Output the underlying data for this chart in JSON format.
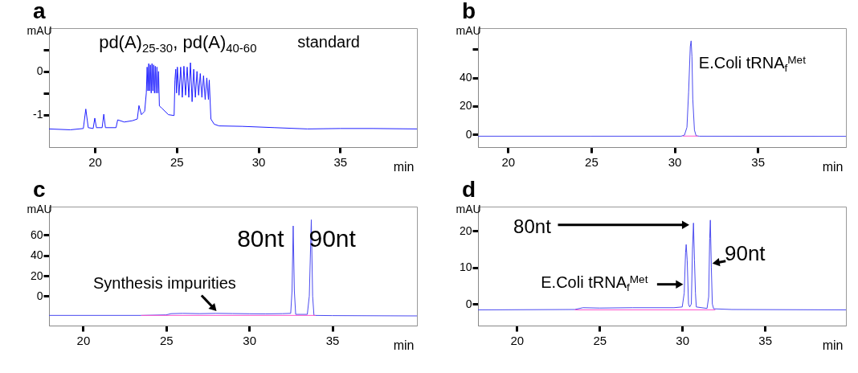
{
  "chart_data": [
    {
      "type": "line",
      "title": "a",
      "xlabel": "min",
      "ylabel": "mAU",
      "xlim": [
        17.2,
        39.7
      ],
      "ylim": [
        -1.75,
        1.0
      ],
      "xticks": [
        20,
        25,
        30,
        35
      ],
      "yticks": [
        {
          "value": 0.5,
          "label": null
        },
        0,
        {
          "value": -0.5,
          "label": null
        },
        -1
      ],
      "annotations": [
        "pd(A)$_{25-30}$, pd(A)$_{40-60}$",
        "standard"
      ],
      "series": [
        {
          "color": "#1f1fff",
          "x": [
            17.2,
            18.5,
            19.3,
            19.45,
            19.6,
            19.9,
            20.0,
            20.1,
            20.45,
            20.55,
            20.65,
            21.3,
            21.4,
            21.8,
            22.3,
            22.6,
            22.7,
            22.85,
            23.05,
            23.15,
            23.2,
            23.25,
            23.3,
            23.35,
            23.4,
            23.45,
            23.5,
            23.55,
            23.6,
            23.65,
            23.7,
            23.75,
            23.8,
            23.85,
            23.9,
            23.95,
            24.1,
            24.5,
            24.85,
            24.9,
            24.95,
            25.0,
            25.05,
            25.15,
            25.25,
            25.35,
            25.45,
            25.55,
            25.65,
            25.75,
            25.85,
            25.95,
            26.05,
            26.15,
            26.25,
            26.35,
            26.45,
            26.55,
            26.65,
            26.75,
            26.85,
            26.95,
            27.0,
            27.1,
            27.3,
            27.6,
            29,
            31,
            33,
            35,
            37,
            39.7
          ],
          "values": [
            -1.33,
            -1.35,
            -1.32,
            -0.87,
            -1.3,
            -1.32,
            -1.08,
            -1.3,
            -1.3,
            -0.99,
            -1.3,
            -1.3,
            -1.12,
            -1.17,
            -1.14,
            -1.1,
            -0.79,
            -1.0,
            -0.92,
            -0.5,
            0.1,
            -0.45,
            0.18,
            -0.45,
            0.15,
            -0.5,
            0.18,
            -0.45,
            0.15,
            -0.5,
            0.12,
            -0.5,
            0.1,
            -0.5,
            0.0,
            -0.8,
            -0.85,
            -1.0,
            -1.02,
            -0.2,
            0.05,
            -0.5,
            0.1,
            -0.55,
            0.1,
            -0.6,
            0.12,
            -0.55,
            0.1,
            -0.6,
            0.2,
            -0.7,
            0.05,
            -0.6,
            0.0,
            -0.55,
            -0.05,
            -0.6,
            -0.1,
            -0.65,
            -0.15,
            -0.65,
            -0.2,
            -1.1,
            -1.22,
            -1.26,
            -1.27,
            -1.3,
            -1.33,
            -1.32,
            -1.32,
            -1.33
          ]
        }
      ]
    },
    {
      "type": "line",
      "title": "b",
      "xlabel": "min",
      "ylabel": "mAU",
      "xlim": [
        18.2,
        40.3
      ],
      "ylim": [
        -9,
        75
      ],
      "xticks": [
        20,
        25,
        30,
        35
      ],
      "yticks": [
        0,
        20,
        40,
        {
          "value": 60,
          "label": null
        }
      ],
      "annotations": [
        "E.Coli tRNA$_{f}$$^{Met}$"
      ],
      "series": [
        {
          "color": "#4b4bf0",
          "x": [
            18.2,
            25,
            30.4,
            30.6,
            30.75,
            30.85,
            30.95,
            31.0,
            31.05,
            31.1,
            31.2,
            31.3,
            31.5,
            40.3
          ],
          "values": [
            -1.3,
            -1.3,
            -1.3,
            -0.5,
            5,
            30,
            62,
            66,
            55,
            25,
            3,
            -1,
            -1.3,
            -1.4
          ]
        },
        {
          "color": "#ff55cc",
          "x": [
            30.5,
            31.4
          ],
          "values": [
            -1.2,
            -1.2
          ]
        }
      ]
    },
    {
      "type": "line",
      "title": "c",
      "xlabel": "min",
      "ylabel": "mAU",
      "xlim": [
        17.95,
        40.1
      ],
      "ylim": [
        -29,
        88
      ],
      "xticks": [
        20,
        25,
        30,
        35
      ],
      "yticks": [
        0,
        20,
        40,
        60
      ],
      "annotations": [
        "80nt",
        "90nt",
        {
          "text": "Synthesis impurities",
          "x": 28.05,
          "y": -15.1
        }
      ],
      "series": [
        {
          "color": "#4b4bf0",
          "x": [
            17.95,
            23.5,
            25,
            25.3,
            26,
            27,
            28,
            29,
            30,
            31,
            32,
            32.5,
            32.58,
            32.65,
            32.72,
            32.8,
            33.5,
            33.62,
            33.74,
            33.82,
            33.9,
            35,
            40.1
          ],
          "values": [
            -19,
            -19,
            -18.5,
            -17.3,
            -17,
            -17.3,
            -17,
            -17.2,
            -17.4,
            -17.5,
            -17.3,
            -17,
            5,
            69,
            5,
            -18,
            -18,
            0,
            75,
            0,
            -19,
            -19.2,
            -19.5
          ]
        },
        {
          "color": "#ff55cc",
          "x": [
            23.5,
            34
          ],
          "values": [
            -19,
            -19
          ]
        }
      ]
    },
    {
      "type": "line",
      "title": "d",
      "xlabel": "min",
      "ylabel": "mAU",
      "xlim": [
        17.65,
        39.9
      ],
      "ylim": [
        -5.9,
        26.7
      ],
      "xticks": [
        20,
        25,
        30,
        35
      ],
      "yticks": [
        0,
        10,
        20
      ],
      "annotations": [
        {
          "text": "80nt",
          "x": 30.45,
          "y": 21.7
        },
        {
          "text": "90nt",
          "x": 31.8,
          "y": 11.1
        },
        {
          "text": "E.Coli tRNA$_{f}$$^{Met}$",
          "x": 30.08,
          "y": 5.4
        }
      ],
      "series": [
        {
          "color": "#4b4bf0",
          "x": [
            17.65,
            23.5,
            24,
            25,
            27,
            29.5,
            30.0,
            30.12,
            30.2,
            30.24,
            30.3,
            30.38,
            30.45,
            30.55,
            30.62,
            30.68,
            30.74,
            30.8,
            30.85,
            31.5,
            31.6,
            31.66,
            31.7,
            31.76,
            31.82,
            31.9,
            33,
            39.9
          ],
          "values": [
            -1.6,
            -1.5,
            -1.0,
            -1.1,
            -1.0,
            -1.0,
            -0.8,
            3,
            14,
            16.3,
            12,
            0,
            -0.8,
            0,
            15,
            22.2,
            12,
            3,
            -0.8,
            -1.2,
            2,
            18,
            23,
            10,
            0,
            -1.3,
            -1.5,
            -1.6
          ]
        },
        {
          "color": "#ff55cc",
          "x": [
            23.5,
            32
          ],
          "values": [
            -1.6,
            -1.6
          ]
        }
      ]
    }
  ]
}
